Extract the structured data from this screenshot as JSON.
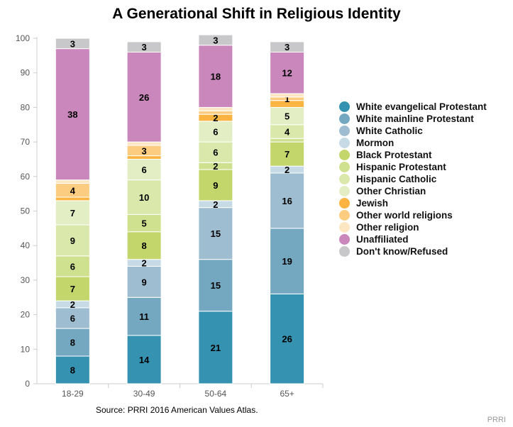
{
  "chart_data": {
    "type": "bar",
    "stacked": true,
    "title": "A Generational Shift in Religious Identity",
    "categories": [
      "18-29",
      "30-49",
      "50-64",
      "65+"
    ],
    "ylim": [
      0,
      100
    ],
    "yticks": [
      0,
      10,
      20,
      30,
      40,
      50,
      60,
      70,
      80,
      90,
      100
    ],
    "grid": false,
    "legend_position": "right",
    "series": [
      {
        "name": "White evangelical Protestant",
        "color": "#3592b0",
        "values": [
          8,
          14,
          21,
          26
        ],
        "labels": [
          true,
          true,
          true,
          true
        ]
      },
      {
        "name": "White mainline Protestant",
        "color": "#74a8c1",
        "values": [
          8,
          11,
          15,
          19
        ],
        "labels": [
          true,
          true,
          true,
          true
        ]
      },
      {
        "name": "White Catholic",
        "color": "#9ebdd0",
        "values": [
          6,
          9,
          15,
          16
        ],
        "labels": [
          true,
          true,
          true,
          true
        ]
      },
      {
        "name": "Mormon",
        "color": "#c7dbe7",
        "values": [
          2,
          2,
          2,
          2
        ],
        "labels": [
          true,
          true,
          true,
          true
        ]
      },
      {
        "name": "Black Protestant",
        "color": "#c3d66b",
        "values": [
          7,
          8,
          9,
          7
        ],
        "labels": [
          true,
          true,
          true,
          true
        ]
      },
      {
        "name": "Hispanic Protestant",
        "color": "#cfe08f",
        "values": [
          6,
          5,
          2,
          1
        ],
        "labels": [
          true,
          true,
          true,
          false
        ]
      },
      {
        "name": "Hispanic Catholic",
        "color": "#dae8ab",
        "values": [
          9,
          10,
          6,
          4
        ],
        "labels": [
          true,
          true,
          true,
          true
        ]
      },
      {
        "name": "Other Christian",
        "color": "#e4eec4",
        "values": [
          7,
          6,
          6,
          5
        ],
        "labels": [
          true,
          true,
          true,
          true
        ]
      },
      {
        "name": "Jewish",
        "color": "#fbb442",
        "values": [
          1,
          1,
          2,
          2
        ],
        "labels": [
          false,
          false,
          true,
          false
        ]
      },
      {
        "name": "Other world religions",
        "color": "#fccc80",
        "values": [
          4,
          3,
          1,
          1
        ],
        "labels": [
          true,
          true,
          false,
          true
        ]
      },
      {
        "name": "Other religion",
        "color": "#fde6c2",
        "values": [
          1,
          1,
          1,
          1
        ],
        "labels": [
          false,
          false,
          false,
          false
        ]
      },
      {
        "name": "Unaffiliated",
        "color": "#c987bb",
        "values": [
          38,
          26,
          18,
          12
        ],
        "labels": [
          true,
          true,
          true,
          true
        ]
      },
      {
        "name": "Don't know/Refused",
        "color": "#c8c8ca",
        "values": [
          3,
          3,
          3,
          3
        ],
        "labels": [
          true,
          true,
          true,
          true
        ]
      }
    ]
  },
  "source": "Source: PRRI 2016 American Values Atlas.",
  "brand": "PRRI"
}
